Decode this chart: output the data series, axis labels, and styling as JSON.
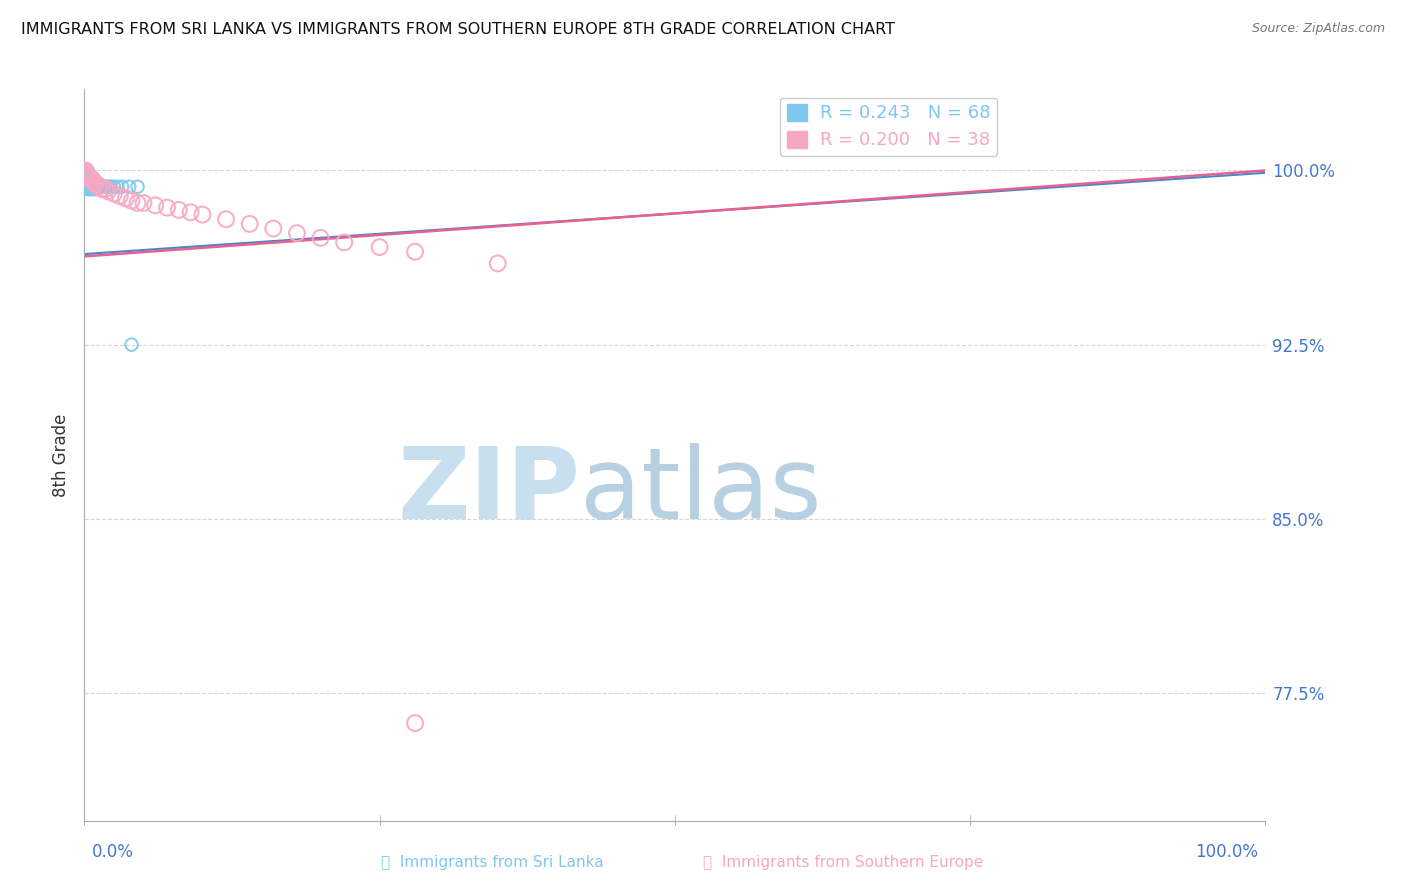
{
  "title": "IMMIGRANTS FROM SRI LANKA VS IMMIGRANTS FROM SOUTHERN EUROPE 8TH GRADE CORRELATION CHART",
  "source": "Source: ZipAtlas.com",
  "ylabel": "8th Grade",
  "ytick_labels": [
    "77.5%",
    "85.0%",
    "92.5%",
    "100.0%"
  ],
  "ytick_values": [
    0.775,
    0.85,
    0.925,
    1.0
  ],
  "xlim": [
    0.0,
    1.0
  ],
  "ylim": [
    0.72,
    1.035
  ],
  "legend_entry_1": "R = 0.243   N = 68",
  "legend_entry_2": "R = 0.200   N = 38",
  "sri_lanka_x": [
    0.0003,
    0.0004,
    0.0005,
    0.0006,
    0.0007,
    0.0008,
    0.0008,
    0.0009,
    0.001,
    0.001,
    0.001,
    0.001,
    0.0012,
    0.0012,
    0.0013,
    0.0014,
    0.0015,
    0.0015,
    0.0016,
    0.0018,
    0.002,
    0.002,
    0.002,
    0.0022,
    0.0025,
    0.003,
    0.003,
    0.003,
    0.004,
    0.004,
    0.005,
    0.005,
    0.006,
    0.007,
    0.008,
    0.009,
    0.01,
    0.011,
    0.012,
    0.013,
    0.015,
    0.016,
    0.018,
    0.02,
    0.022,
    0.025,
    0.028,
    0.032,
    0.038,
    0.045,
    0.0003,
    0.0004,
    0.0005,
    0.0005,
    0.0006,
    0.0007,
    0.0008,
    0.001,
    0.0012,
    0.0015,
    0.002,
    0.003,
    0.004,
    0.005,
    0.006,
    0.008,
    0.01,
    0.04
  ],
  "sri_lanka_y": [
    1.0,
    1.0,
    1.0,
    1.0,
    0.999,
    0.999,
    0.998,
    0.998,
    0.999,
    0.997,
    0.996,
    0.995,
    0.998,
    0.997,
    0.997,
    0.996,
    0.997,
    0.996,
    0.996,
    0.997,
    0.997,
    0.996,
    0.995,
    0.996,
    0.996,
    0.997,
    0.996,
    0.995,
    0.996,
    0.995,
    0.996,
    0.995,
    0.995,
    0.995,
    0.995,
    0.994,
    0.995,
    0.994,
    0.994,
    0.994,
    0.993,
    0.993,
    0.993,
    0.993,
    0.993,
    0.993,
    0.993,
    0.993,
    0.993,
    0.993,
    1.0,
    0.999,
    0.999,
    0.998,
    0.998,
    0.997,
    0.997,
    0.996,
    0.995,
    0.994,
    0.993,
    0.992,
    0.992,
    0.992,
    0.992,
    0.992,
    0.992,
    0.925
  ],
  "southern_europe_x": [
    0.001,
    0.001,
    0.002,
    0.002,
    0.003,
    0.003,
    0.004,
    0.005,
    0.006,
    0.007,
    0.008,
    0.009,
    0.01,
    0.012,
    0.015,
    0.018,
    0.02,
    0.025,
    0.03,
    0.035,
    0.04,
    0.045,
    0.05,
    0.06,
    0.07,
    0.08,
    0.09,
    0.1,
    0.12,
    0.14,
    0.16,
    0.18,
    0.2,
    0.22,
    0.25,
    0.28,
    0.35,
    0.28
  ],
  "southern_europe_y": [
    1.0,
    0.999,
    0.999,
    0.998,
    0.998,
    0.997,
    0.997,
    0.997,
    0.996,
    0.996,
    0.995,
    0.994,
    0.994,
    0.993,
    0.992,
    0.992,
    0.991,
    0.99,
    0.989,
    0.988,
    0.987,
    0.986,
    0.986,
    0.985,
    0.984,
    0.983,
    0.982,
    0.981,
    0.979,
    0.977,
    0.975,
    0.973,
    0.971,
    0.969,
    0.967,
    0.965,
    0.96,
    0.762
  ],
  "blue_line_y_start": 0.964,
  "blue_line_y_end": 0.999,
  "pink_line_y_start": 0.963,
  "pink_line_y_end": 1.0,
  "dot_size_sri_lanka": 80,
  "dot_size_southern_europe": 130,
  "blue_dot_color": "#7ec8f0",
  "pink_dot_color": "#f7a8c0",
  "blue_line_color": "#4488cc",
  "pink_line_color": "#e86090",
  "grid_color": "#cccccc",
  "title_color": "#111111",
  "axis_tick_color": "#4477cc",
  "watermark_zip_color": "#c8dff0",
  "watermark_atlas_color": "#b0cce0"
}
